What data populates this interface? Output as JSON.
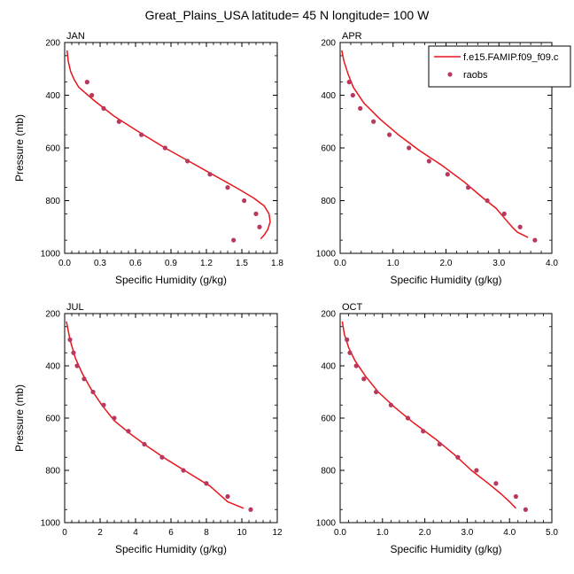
{
  "title": "Great_Plains_USA  latitude= 45 N longitude= 100 W",
  "legend": {
    "model_label": "f.e15.FAMIP.f09_f09.c",
    "obs_label": "raobs"
  },
  "colors": {
    "model_line": "#e8161b",
    "obs_marker": "#b8385e"
  },
  "chart_data": [
    {
      "type": "line",
      "panel_label": "JAN",
      "xlabel": "Specific Humidity (g/kg)",
      "ylabel": "Pressure (mb)",
      "xlim": [
        0,
        1.8
      ],
      "ylim": [
        1000,
        200
      ],
      "xticks": [
        "0.0",
        "0.3",
        "0.6",
        "0.9",
        "1.2",
        "1.5",
        "1.8"
      ],
      "yticks": [
        "200",
        "400",
        "600",
        "800",
        "1000"
      ],
      "series": [
        {
          "name": "f.e15.FAMIP.f09_f09.c",
          "kind": "line",
          "x": [
            0.02,
            0.03,
            0.05,
            0.08,
            0.12,
            0.25,
            0.42,
            0.63,
            0.85,
            1.05,
            1.25,
            1.45,
            1.6,
            1.69,
            1.73,
            1.74,
            1.72,
            1.69,
            1.66
          ],
          "y": [
            230,
            270,
            310,
            340,
            370,
            420,
            480,
            540,
            600,
            650,
            700,
            750,
            790,
            820,
            850,
            880,
            910,
            930,
            945
          ]
        },
        {
          "name": "raobs",
          "kind": "scatter",
          "x": [
            0.19,
            0.23,
            0.33,
            0.46,
            0.65,
            0.85,
            1.04,
            1.23,
            1.38,
            1.52,
            1.62,
            1.65,
            1.43
          ],
          "y": [
            350,
            400,
            450,
            500,
            550,
            600,
            650,
            700,
            750,
            800,
            850,
            900,
            950
          ]
        }
      ]
    },
    {
      "type": "line",
      "panel_label": "APR",
      "xlabel": "Specific Humidity (g/kg)",
      "ylabel": "",
      "xlim": [
        0,
        4.0
      ],
      "ylim": [
        1000,
        200
      ],
      "xticks": [
        "0.0",
        "1.0",
        "2.0",
        "3.0",
        "4.0"
      ],
      "yticks": [
        "200",
        "400",
        "600",
        "800",
        "1000"
      ],
      "series": [
        {
          "name": "f.e15.FAMIP.f09_f09.c",
          "kind": "line",
          "x": [
            0.03,
            0.07,
            0.15,
            0.25,
            0.45,
            0.75,
            1.1,
            1.5,
            1.95,
            2.35,
            2.7,
            2.95,
            3.12,
            3.25,
            3.35,
            3.55
          ],
          "y": [
            230,
            270,
            320,
            370,
            430,
            490,
            550,
            610,
            670,
            730,
            790,
            830,
            870,
            900,
            920,
            940
          ]
        },
        {
          "name": "raobs",
          "kind": "scatter",
          "x": [
            0.17,
            0.24,
            0.38,
            0.63,
            0.93,
            1.3,
            1.68,
            2.03,
            2.42,
            2.78,
            3.1,
            3.4,
            3.68
          ],
          "y": [
            350,
            400,
            450,
            500,
            550,
            600,
            650,
            700,
            750,
            800,
            850,
            900,
            950
          ]
        }
      ]
    },
    {
      "type": "line",
      "panel_label": "JUL",
      "xlabel": "Specific Humidity (g/kg)",
      "ylabel": "Pressure (mb)",
      "xlim": [
        0,
        12
      ],
      "ylim": [
        1000,
        200
      ],
      "xticks": [
        "0",
        "2",
        "4",
        "6",
        "8",
        "10",
        "12"
      ],
      "yticks": [
        "200",
        "400",
        "600",
        "800",
        "1000"
      ],
      "series": [
        {
          "name": "f.e15.FAMIP.f09_f09.c",
          "kind": "line",
          "x": [
            0.1,
            0.3,
            0.6,
            1.0,
            1.5,
            2.1,
            2.8,
            3.7,
            4.7,
            5.8,
            7.0,
            8.2,
            9.2,
            10.1
          ],
          "y": [
            230,
            300,
            370,
            430,
            490,
            550,
            610,
            660,
            710,
            760,
            810,
            860,
            920,
            945
          ]
        },
        {
          "name": "raobs",
          "kind": "scatter",
          "x": [
            0.3,
            0.5,
            0.7,
            1.1,
            1.6,
            2.2,
            2.8,
            3.6,
            4.5,
            5.5,
            6.7,
            8.0,
            9.2,
            10.5
          ],
          "y": [
            300,
            350,
            400,
            450,
            500,
            550,
            600,
            650,
            700,
            750,
            800,
            850,
            900,
            950
          ]
        }
      ]
    },
    {
      "type": "line",
      "panel_label": "OCT",
      "xlabel": "Specific Humidity (g/kg)",
      "ylabel": "",
      "xlim": [
        0,
        5.0
      ],
      "ylim": [
        1000,
        200
      ],
      "xticks": [
        "0.0",
        "1.0",
        "2.0",
        "3.0",
        "4.0",
        "5.0"
      ],
      "yticks": [
        "200",
        "400",
        "600",
        "800",
        "1000"
      ],
      "series": [
        {
          "name": "f.e15.FAMIP.f09_f09.c",
          "kind": "line",
          "x": [
            0.05,
            0.1,
            0.2,
            0.35,
            0.6,
            0.9,
            1.3,
            1.75,
            2.25,
            2.7,
            3.1,
            3.5,
            3.8,
            4.0,
            4.15
          ],
          "y": [
            230,
            280,
            330,
            380,
            440,
            500,
            560,
            620,
            680,
            740,
            800,
            850,
            890,
            920,
            945
          ]
        },
        {
          "name": "raobs",
          "kind": "scatter",
          "x": [
            0.16,
            0.23,
            0.38,
            0.56,
            0.85,
            1.2,
            1.6,
            1.96,
            2.35,
            2.78,
            3.22,
            3.68,
            4.15,
            4.38
          ],
          "y": [
            300,
            350,
            400,
            450,
            500,
            550,
            600,
            650,
            700,
            750,
            800,
            850,
            900,
            950
          ]
        }
      ]
    }
  ]
}
